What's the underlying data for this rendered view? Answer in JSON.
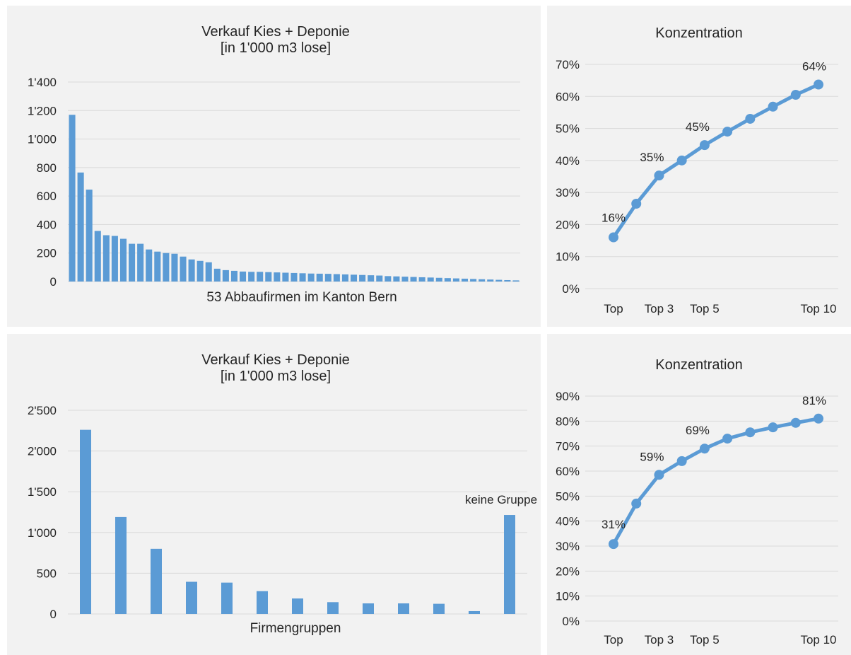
{
  "chart_data": [
    {
      "type": "bar",
      "title": "Verkauf Kies + Deponie",
      "subtitle": "[in 1'000 m3 lose]",
      "xlabel": "53 Abbaufirmen im Kanton Bern",
      "ylabel": "",
      "ylim": [
        0,
        1400
      ],
      "yticks": [
        "0",
        "200",
        "400",
        "600",
        "800",
        "1'000",
        "1'200",
        "1'400"
      ],
      "values": [
        1170,
        765,
        645,
        355,
        325,
        320,
        300,
        265,
        265,
        225,
        210,
        200,
        195,
        175,
        155,
        145,
        135,
        90,
        80,
        75,
        70,
        68,
        68,
        66,
        64,
        62,
        60,
        58,
        56,
        55,
        54,
        52,
        50,
        48,
        46,
        44,
        42,
        38,
        36,
        34,
        32,
        30,
        28,
        26,
        24,
        22,
        20,
        18,
        16,
        14,
        12,
        10,
        8
      ],
      "grid": true,
      "legend": "none"
    },
    {
      "type": "line",
      "title": "Konzentration",
      "x": [
        1,
        2,
        3,
        4,
        5,
        6,
        7,
        8,
        9,
        10
      ],
      "xticks": [
        {
          "x": 1,
          "label": "Top"
        },
        {
          "x": 3,
          "label": "Top 3"
        },
        {
          "x": 5,
          "label": "Top 5"
        },
        {
          "x": 10,
          "label": "Top 10"
        }
      ],
      "values": [
        16,
        26.5,
        35.3,
        40,
        44.8,
        49,
        53,
        56.8,
        60.5,
        63.7
      ],
      "data_labels": [
        {
          "index": 0,
          "text": "16%"
        },
        {
          "index": 2,
          "text": "35%"
        },
        {
          "index": 4,
          "text": "45%"
        },
        {
          "index": 9,
          "text": "64%"
        }
      ],
      "ylim": [
        0,
        70
      ],
      "yticks": [
        "0%",
        "10%",
        "20%",
        "30%",
        "40%",
        "50%",
        "60%",
        "70%"
      ],
      "grid": true,
      "legend": "none"
    },
    {
      "type": "bar",
      "title": "Verkauf Kies + Deponie",
      "subtitle": "[in 1'000 m3 lose]",
      "xlabel": "Firmengruppen",
      "ylabel": "",
      "ylim": [
        0,
        2500
      ],
      "yticks": [
        "0",
        "500",
        "1'000",
        "1'500",
        "2'000",
        "2'500"
      ],
      "values": [
        2260,
        1190,
        800,
        395,
        385,
        280,
        190,
        145,
        130,
        130,
        125,
        35,
        1215
      ],
      "annotations": [
        {
          "index": 12,
          "text": "keine Gruppe"
        }
      ],
      "grid": true,
      "legend": "none"
    },
    {
      "type": "line",
      "title": "Konzentration",
      "x": [
        1,
        2,
        3,
        4,
        5,
        6,
        7,
        8,
        9,
        10
      ],
      "xticks": [
        {
          "x": 1,
          "label": "Top"
        },
        {
          "x": 3,
          "label": "Top 3"
        },
        {
          "x": 5,
          "label": "Top 5"
        },
        {
          "x": 10,
          "label": "Top 10"
        }
      ],
      "values": [
        30.8,
        47,
        58.5,
        64,
        69,
        73,
        75.5,
        77.5,
        79.3,
        81
      ],
      "data_labels": [
        {
          "index": 0,
          "text": "31%"
        },
        {
          "index": 2,
          "text": "59%"
        },
        {
          "index": 4,
          "text": "69%"
        },
        {
          "index": 9,
          "text": "81%"
        }
      ],
      "ylim": [
        0,
        90
      ],
      "yticks": [
        "0%",
        "10%",
        "20%",
        "30%",
        "40%",
        "50%",
        "60%",
        "70%",
        "80%",
        "90%"
      ],
      "grid": true,
      "legend": "none"
    }
  ]
}
